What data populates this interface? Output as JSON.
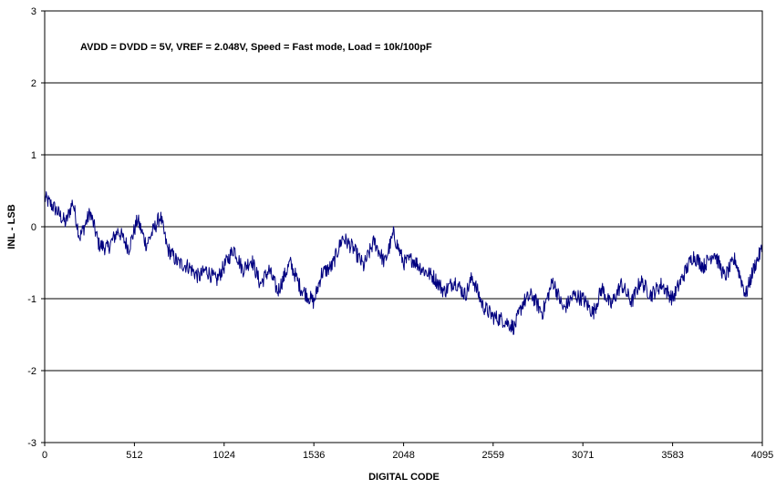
{
  "chart_data": {
    "type": "line",
    "title": "",
    "annotation": "AVDD = DVDD = 5V, VREF = 2.048V, Speed = Fast mode, Load = 10k/100pF",
    "xlabel": "DIGITAL CODE",
    "ylabel": "INL - LSB",
    "xlim": [
      0,
      4095
    ],
    "ylim": [
      -3,
      3
    ],
    "x_ticks": [
      0,
      512,
      1024,
      1536,
      2048,
      2559,
      3071,
      3583,
      4095
    ],
    "y_ticks": [
      -3,
      -2,
      -1,
      0,
      1,
      2,
      3
    ],
    "grid": "horizontal",
    "line_color": "#000080",
    "series": [
      {
        "x": [
          0,
          60,
          120,
          160,
          200,
          260,
          310,
          360,
          420,
          480,
          530,
          580,
          620,
          660,
          700,
          760,
          820,
          880,
          920,
          980,
          1024,
          1080,
          1130,
          1180,
          1230,
          1280,
          1330,
          1400,
          1460,
          1536,
          1580,
          1640,
          1700,
          1760,
          1820,
          1880,
          1940,
          1990,
          2048,
          2100,
          2160,
          2220,
          2280,
          2340,
          2400,
          2440,
          2500,
          2559,
          2620,
          2680,
          2730,
          2780,
          2840,
          2900,
          2960,
          3020,
          3071,
          3130,
          3180,
          3230,
          3290,
          3350,
          3400,
          3460,
          3520,
          3583,
          3640,
          3700,
          3760,
          3820,
          3880,
          3940,
          4000,
          4050,
          4095
        ],
        "y": [
          0.4,
          0.25,
          0.05,
          0.35,
          -0.15,
          0.2,
          -0.25,
          -0.3,
          -0.05,
          -0.3,
          0.1,
          -0.25,
          -0.05,
          0.15,
          -0.3,
          -0.5,
          -0.55,
          -0.7,
          -0.6,
          -0.75,
          -0.55,
          -0.3,
          -0.6,
          -0.45,
          -0.8,
          -0.6,
          -0.9,
          -0.5,
          -0.85,
          -1.05,
          -0.65,
          -0.55,
          -0.15,
          -0.3,
          -0.55,
          -0.2,
          -0.5,
          -0.1,
          -0.5,
          -0.45,
          -0.6,
          -0.7,
          -0.9,
          -0.75,
          -0.95,
          -0.7,
          -1.1,
          -1.25,
          -1.3,
          -1.4,
          -1.05,
          -0.95,
          -1.2,
          -0.75,
          -1.15,
          -0.95,
          -1.0,
          -1.2,
          -0.85,
          -1.1,
          -0.8,
          -1.05,
          -0.75,
          -0.95,
          -0.8,
          -1.0,
          -0.7,
          -0.4,
          -0.55,
          -0.35,
          -0.7,
          -0.45,
          -0.95,
          -0.55,
          -0.3
        ]
      }
    ]
  }
}
